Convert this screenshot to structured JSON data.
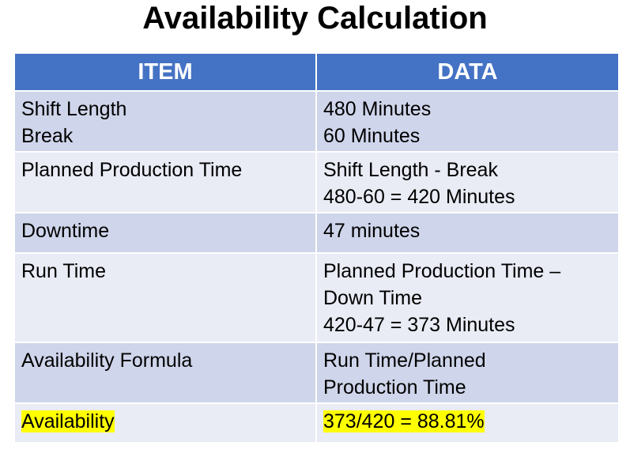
{
  "title": "Availability Calculation",
  "table": {
    "header": [
      "ITEM",
      "DATA"
    ],
    "rows": [
      [
        [
          "Shift Length",
          "Break"
        ],
        [
          "480 Minutes",
          "60 Minutes"
        ]
      ],
      [
        [
          "Planned Production Time"
        ],
        [
          "Shift Length - Break",
          "480-60 = 420 Minutes"
        ]
      ],
      [
        [
          "Downtime"
        ],
        [
          "47 minutes"
        ]
      ],
      [
        [
          "Run Time"
        ],
        [
          "Planned Production Time –",
          "Down Time",
          "420-47 = 373 Minutes"
        ]
      ],
      [
        [
          "Availability Formula"
        ],
        [
          "Run Time/Planned",
          "Production Time"
        ]
      ],
      [
        [
          "Availability"
        ],
        [
          "373/420 = 88.81%"
        ]
      ]
    ]
  }
}
